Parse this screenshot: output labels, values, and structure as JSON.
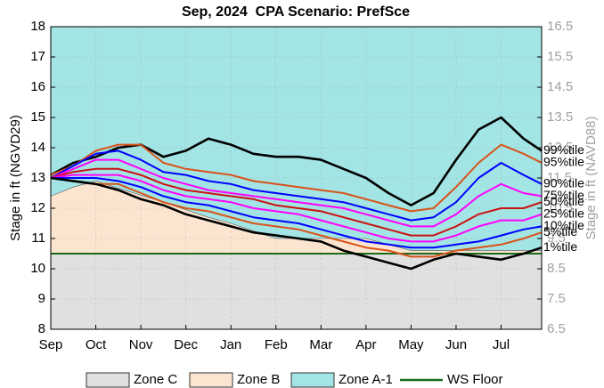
{
  "chart_data": {
    "type": "line",
    "title": "Sep, 2024  CPA Scenario: PrefSce",
    "ylabel": "Stage in ft (NGVD29)",
    "y2label": "Stage in ft (NAVD88)",
    "xlim": [
      0,
      10.9
    ],
    "xticks": [
      {
        "value": 0,
        "label": "Sep"
      },
      {
        "value": 1,
        "label": "Oct"
      },
      {
        "value": 2,
        "label": "Nov"
      },
      {
        "value": 3,
        "label": "Dec"
      },
      {
        "value": 4,
        "label": "Jan"
      },
      {
        "value": 5,
        "label": "Feb"
      },
      {
        "value": 6,
        "label": "Mar"
      },
      {
        "value": 7,
        "label": "Apr"
      },
      {
        "value": 8,
        "label": "May"
      },
      {
        "value": 9,
        "label": "Jun"
      },
      {
        "value": 10,
        "label": "Jul"
      }
    ],
    "ylim": [
      8,
      18
    ],
    "yticks": [
      8,
      9,
      10,
      11,
      12,
      13,
      14,
      15,
      16,
      17,
      18
    ],
    "y2lim": [
      6.5,
      16.5
    ],
    "y2ticks": [
      6.5,
      7.5,
      8.5,
      9.5,
      10.5,
      11.5,
      12.5,
      13.5,
      14.5,
      15.5,
      16.5
    ],
    "grid": true,
    "x": [
      0,
      0.5,
      1,
      1.5,
      2,
      2.5,
      3,
      3.5,
      4,
      4.5,
      5,
      5.5,
      6,
      6.5,
      7,
      7.5,
      8,
      8.5,
      9,
      9.5,
      10,
      10.5,
      10.9
    ],
    "zones": [
      {
        "name": "Zone C",
        "color": "#e0e0e0",
        "values": [
          10.5,
          10.5,
          10.5,
          10.5,
          10.5,
          10.5,
          10.5,
          10.5,
          10.5,
          10.5,
          10.5,
          10.5,
          10.5,
          10.5,
          10.5,
          10.5,
          10.5,
          10.5,
          10.5,
          10.5,
          10.5,
          10.5,
          10.5
        ]
      },
      {
        "name": "Zone B",
        "color": "#fbe5d0",
        "values": [
          12.4,
          12.7,
          12.9,
          12.66,
          12.43,
          12.2,
          11.95,
          11.7,
          11.5,
          11.25,
          11.0,
          11.0,
          11.0,
          11.0,
          11.0,
          10.8,
          10.6,
          10.6,
          10.6,
          10.6,
          10.6,
          10.6,
          10.6
        ]
      },
      {
        "name": "Zone A-1",
        "color": "#a3e4e4",
        "values": [
          18,
          18,
          18,
          18,
          18,
          18,
          18,
          18,
          18,
          18,
          18,
          18,
          18,
          18,
          18,
          18,
          18,
          18,
          18,
          18,
          18,
          18,
          18
        ]
      }
    ],
    "ws_floor": {
      "name": "WS Floor",
      "color": "#1c6b1c",
      "values": [
        10.5,
        10.5,
        10.5,
        10.5,
        10.5,
        10.5,
        10.5,
        10.5,
        10.5,
        10.5,
        10.5,
        10.5,
        10.5,
        10.5,
        10.5,
        10.5,
        10.5,
        10.5,
        10.5,
        10.5,
        10.5,
        10.5,
        10.5
      ]
    },
    "series": [
      {
        "name": "99%tile",
        "color": "#000000",
        "values": [
          13.1,
          13.5,
          13.7,
          14.0,
          14.1,
          13.7,
          13.9,
          14.3,
          14.1,
          13.8,
          13.7,
          13.7,
          13.6,
          13.3,
          13.0,
          12.5,
          12.1,
          12.5,
          13.6,
          14.6,
          15.0,
          14.3,
          13.9
        ]
      },
      {
        "name": "95%tile",
        "color": "#d95319",
        "values": [
          13.1,
          13.4,
          13.9,
          14.1,
          14.1,
          13.5,
          13.3,
          13.2,
          13.1,
          12.9,
          12.8,
          12.7,
          12.6,
          12.5,
          12.3,
          12.1,
          11.9,
          12.0,
          12.7,
          13.5,
          14.1,
          13.8,
          13.5
        ]
      },
      {
        "name": "90%tile",
        "color": "#0000ff",
        "values": [
          13.0,
          13.4,
          13.8,
          13.9,
          13.6,
          13.2,
          13.1,
          12.9,
          12.8,
          12.6,
          12.5,
          12.4,
          12.3,
          12.2,
          12.0,
          11.8,
          11.6,
          11.7,
          12.2,
          13.0,
          13.5,
          13.1,
          12.8
        ]
      },
      {
        "name": "75%tile",
        "color": "#ff00ff",
        "values": [
          13.0,
          13.3,
          13.6,
          13.6,
          13.3,
          13.0,
          12.8,
          12.6,
          12.5,
          12.4,
          12.3,
          12.2,
          12.1,
          12.0,
          11.8,
          11.6,
          11.4,
          11.4,
          11.8,
          12.4,
          12.8,
          12.5,
          12.4
        ]
      },
      {
        "name": "50%tile",
        "color": "#cc1111",
        "values": [
          13.0,
          13.2,
          13.3,
          13.3,
          13.1,
          12.8,
          12.6,
          12.5,
          12.4,
          12.3,
          12.1,
          12.0,
          11.9,
          11.7,
          11.5,
          11.3,
          11.1,
          11.1,
          11.4,
          11.8,
          12.0,
          12.0,
          12.2
        ]
      },
      {
        "name": "25%tile",
        "color": "#ff00ff",
        "values": [
          13.0,
          13.1,
          13.1,
          13.1,
          12.9,
          12.6,
          12.4,
          12.3,
          12.2,
          12.0,
          11.9,
          11.8,
          11.6,
          11.4,
          11.2,
          11.0,
          10.9,
          10.9,
          11.1,
          11.4,
          11.6,
          11.6,
          11.8
        ]
      },
      {
        "name": "10%tile",
        "color": "#0000ff",
        "values": [
          13.0,
          13.0,
          13.0,
          12.9,
          12.7,
          12.4,
          12.2,
          12.1,
          11.9,
          11.7,
          11.6,
          11.5,
          11.3,
          11.1,
          10.9,
          10.8,
          10.7,
          10.7,
          10.8,
          10.9,
          11.1,
          11.3,
          11.4
        ]
      },
      {
        "name": "5%tile",
        "color": "#d95319",
        "values": [
          13.0,
          12.9,
          12.8,
          12.8,
          12.5,
          12.2,
          12.0,
          11.9,
          11.7,
          11.5,
          11.4,
          11.3,
          11.1,
          10.9,
          10.7,
          10.6,
          10.4,
          10.4,
          10.6,
          10.7,
          10.8,
          11.0,
          11.2
        ]
      },
      {
        "name": "1%tile",
        "color": "#000000",
        "values": [
          13.0,
          12.9,
          12.8,
          12.6,
          12.3,
          12.1,
          11.8,
          11.6,
          11.4,
          11.2,
          11.1,
          11.0,
          10.9,
          10.6,
          10.4,
          10.2,
          10.0,
          10.3,
          10.5,
          10.4,
          10.3,
          10.5,
          10.7
        ]
      }
    ]
  }
}
